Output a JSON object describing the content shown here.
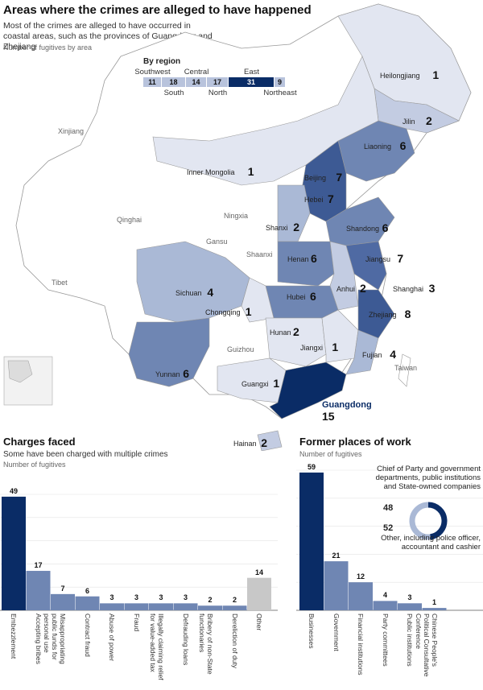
{
  "header": {
    "title": "Areas where the crimes are alleged to have happened",
    "subtitle": "Most of the crimes are alleged to have occurred in coastal areas, such as the provinces of Guangdong and Zhejiang",
    "note": "Number of fugitives by area"
  },
  "regions": {
    "heading": "By region",
    "items": [
      {
        "name": "Southwest",
        "value": 11,
        "color": "#b8c3dc"
      },
      {
        "name": "South",
        "value": 18,
        "color": "#b8c3dc"
      },
      {
        "name": "Central",
        "value": 14,
        "color": "#b8c3dc"
      },
      {
        "name": "North",
        "value": 17,
        "color": "#b8c3dc"
      },
      {
        "name": "East",
        "value": 31,
        "color": "#0a2c66"
      },
      {
        "name": "Northeast",
        "value": 9,
        "color": "#b8c3dc"
      }
    ]
  },
  "map": {
    "labels_with_counts": [
      {
        "name": "Heilongjiang",
        "value": "1"
      },
      {
        "name": "Jilin",
        "value": "2"
      },
      {
        "name": "Liaoning",
        "value": "6"
      },
      {
        "name": "Inner Mongolia",
        "value": "1"
      },
      {
        "name": "Beijing",
        "value": "7"
      },
      {
        "name": "Hebei",
        "value": "7"
      },
      {
        "name": "Shanxi",
        "value": "2"
      },
      {
        "name": "Shandong",
        "value": "6"
      },
      {
        "name": "Henan",
        "value": "6"
      },
      {
        "name": "Jiangsu",
        "value": "7"
      },
      {
        "name": "Anhui",
        "value": "2"
      },
      {
        "name": "Shanghai",
        "value": "3"
      },
      {
        "name": "Sichuan",
        "value": "4"
      },
      {
        "name": "Chongqing",
        "value": "1"
      },
      {
        "name": "Hubei",
        "value": "6"
      },
      {
        "name": "Zhejiang",
        "value": "8"
      },
      {
        "name": "Hunan",
        "value": "2"
      },
      {
        "name": "Jiangxi",
        "value": "1"
      },
      {
        "name": "Fujian",
        "value": "4"
      },
      {
        "name": "Yunnan",
        "value": "6"
      },
      {
        "name": "Guangxi",
        "value": "1"
      },
      {
        "name": "Guangdong",
        "value": "15"
      },
      {
        "name": "Hainan",
        "value": "2"
      }
    ],
    "labels_plain": [
      "Xinjiang",
      "Qinghai",
      "Tibet",
      "Ningxia",
      "Gansu",
      "Shaanxi",
      "Guizhou",
      "Taiwan"
    ]
  },
  "chart_data": [
    {
      "type": "bar",
      "title": "Charges faced",
      "subtitle": "Some have been charged with multiple crimes",
      "ylabel": "Number of fugitives",
      "categories": [
        "Embezzlement",
        "Accepting bribes",
        "Misappropriating public funds for personal use",
        "Contract fraud",
        "Abuse of power",
        "Fraud",
        "Illegally claiming relief for value-added tax",
        "Defrauding loans",
        "Bribery of non-State functionaries",
        "Dereliction of duty",
        "Other"
      ],
      "values": [
        49,
        17,
        7,
        6,
        3,
        3,
        3,
        3,
        2,
        2,
        14
      ],
      "ylim": [
        0,
        50
      ],
      "colors": [
        "#0a2c66",
        "#6f86b3",
        "#6f86b3",
        "#6f86b3",
        "#6f86b3",
        "#6f86b3",
        "#6f86b3",
        "#6f86b3",
        "#6f86b3",
        "#6f86b3",
        "#c8c8c8"
      ]
    },
    {
      "type": "bar",
      "title": "Former places of work",
      "ylabel": "Number of fugitives",
      "categories": [
        "Businesses",
        "Government",
        "Financial institutions",
        "Party committees",
        "Public institutions",
        "Chinese People's Political Consultative Conference"
      ],
      "values": [
        59,
        21,
        12,
        4,
        3,
        1
      ],
      "ylim": [
        0,
        60
      ],
      "colors": [
        "#0a2c66",
        "#6f86b3",
        "#6f86b3",
        "#6f86b3",
        "#6f86b3",
        "#6f86b3"
      ]
    },
    {
      "type": "pie",
      "slices": [
        {
          "label": "Chief of Party and government departments, public institutions and State-owned companies",
          "value": 48,
          "color": "#0a2c66"
        },
        {
          "label": "Other, including police officer, accountant and cashier",
          "value": 52,
          "color": "#aab9d6"
        }
      ]
    }
  ]
}
